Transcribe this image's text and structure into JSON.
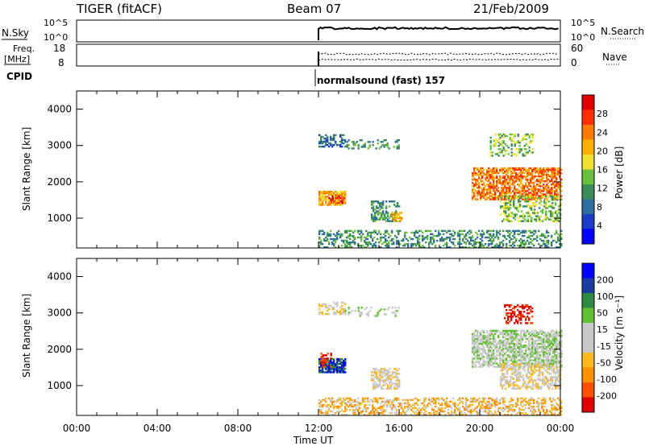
{
  "header": {
    "title": "TIGER (fitACF)",
    "beam": "Beam 07",
    "date": "21/Feb/2009"
  },
  "panels": {
    "nsky": {
      "label": "N.Sky",
      "ticks_left": [
        "10^5",
        "10^0"
      ],
      "right_label": "N.Search",
      "ticks_right": [
        "10^5",
        "10^0"
      ]
    },
    "freq": {
      "label_line1": "Freq.",
      "label_line2": "[MHz]",
      "ticks_left": [
        "18",
        "8"
      ],
      "right_label": "Nave",
      "ticks_right": [
        "60",
        "0"
      ]
    },
    "cpid": {
      "label": "CPID",
      "value": "normalsound (fast) 157"
    }
  },
  "colors": {
    "power_scale": [
      "#0000ff",
      "#1a3cc8",
      "#2e6e9e",
      "#3c8c5a",
      "#6cc040",
      "#f0e030",
      "#ffb000",
      "#ff7a00",
      "#ff3000",
      "#e00000"
    ],
    "velocity_scale": [
      "#e00000",
      "#ff5000",
      "#ff9000",
      "#ffb820",
      "#c8c8c8",
      "#c8c8c8",
      "#60c030",
      "#2e8a40",
      "#1a3ca0",
      "#0000ff"
    ]
  },
  "chart_data": [
    {
      "type": "heatmap",
      "name": "power",
      "ylabel": "Slant Range [km]",
      "yticks": [
        "1000",
        "2000",
        "3000",
        "4000"
      ],
      "ylim": [
        180,
        4500
      ],
      "xlim": [
        0,
        24
      ],
      "colorbar": {
        "label": "Power [dB]",
        "ticks": [
          "4",
          "8",
          "12",
          "16",
          "20",
          "24",
          "28"
        ],
        "range": [
          0,
          32
        ]
      },
      "regions": [
        {
          "t0": 12.0,
          "t1": 13.3,
          "r0": 2950,
          "r1": 3300,
          "level": 2,
          "density": 0.45
        },
        {
          "t0": 13.3,
          "t1": 16.0,
          "r0": 2900,
          "r1": 3150,
          "level": 3,
          "density": 0.25
        },
        {
          "t0": 12.0,
          "t1": 13.3,
          "r0": 1350,
          "r1": 1750,
          "level": 6,
          "density": 0.85
        },
        {
          "t0": 12.5,
          "t1": 13.3,
          "r0": 1400,
          "r1": 1600,
          "level": 8,
          "density": 0.6
        },
        {
          "t0": 14.6,
          "t1": 16.0,
          "r0": 900,
          "r1": 1450,
          "level": 3,
          "density": 0.5
        },
        {
          "t0": 15.6,
          "t1": 16.1,
          "r0": 900,
          "r1": 1150,
          "level": 6,
          "density": 0.8
        },
        {
          "t0": 19.6,
          "t1": 24.0,
          "r0": 1500,
          "r1": 2400,
          "level": 7,
          "density": 0.65
        },
        {
          "t0": 21.0,
          "t1": 24.0,
          "r0": 900,
          "r1": 1600,
          "level": 4,
          "density": 0.45
        },
        {
          "t0": 20.5,
          "t1": 22.6,
          "r0": 2700,
          "r1": 3300,
          "level": 4,
          "density": 0.35
        },
        {
          "t0": 12.0,
          "t1": 24.0,
          "r0": 180,
          "r1": 650,
          "level": 3,
          "density": 0.4
        }
      ]
    },
    {
      "type": "heatmap",
      "name": "velocity",
      "ylabel": "Slant Range [km]",
      "yticks": [
        "1000",
        "2000",
        "3000",
        "4000"
      ],
      "ylim": [
        180,
        4500
      ],
      "xlim": [
        0,
        24
      ],
      "xticks": [
        "00:00",
        "04:00",
        "08:00",
        "12:00",
        "16:00",
        "20:00",
        "00:00"
      ],
      "xlabel": "Time UT",
      "colorbar": {
        "label": "Velocity [m s⁻¹]",
        "ticks": [
          "-200",
          "-100",
          "-50",
          "-15",
          "15",
          "50",
          "100",
          "200"
        ],
        "range": [
          -250,
          250
        ]
      },
      "regions": [
        {
          "t0": 12.0,
          "t1": 13.3,
          "r0": 2950,
          "r1": 3300,
          "level": 4,
          "density": 0.45
        },
        {
          "t0": 13.3,
          "t1": 16.0,
          "r0": 2900,
          "r1": 3150,
          "level": 5,
          "density": 0.2
        },
        {
          "t0": 12.0,
          "t1": 13.3,
          "r0": 1350,
          "r1": 1750,
          "level": 8,
          "density": 0.85
        },
        {
          "t0": 12.1,
          "t1": 12.6,
          "r0": 1500,
          "r1": 1900,
          "level": 0,
          "density": 0.5
        },
        {
          "t0": 14.6,
          "t1": 16.0,
          "r0": 900,
          "r1": 1450,
          "level": 4,
          "density": 0.6
        },
        {
          "t0": 19.6,
          "t1": 24.0,
          "r0": 1500,
          "r1": 2500,
          "level": 5,
          "density": 0.7
        },
        {
          "t0": 21.0,
          "t1": 24.0,
          "r0": 900,
          "r1": 1600,
          "level": 4,
          "density": 0.5
        },
        {
          "t0": 21.2,
          "t1": 22.6,
          "r0": 2700,
          "r1": 3200,
          "level": 0,
          "density": 0.4
        },
        {
          "t0": 12.0,
          "t1": 24.0,
          "r0": 180,
          "r1": 650,
          "level": 3,
          "density": 0.45
        }
      ]
    }
  ]
}
